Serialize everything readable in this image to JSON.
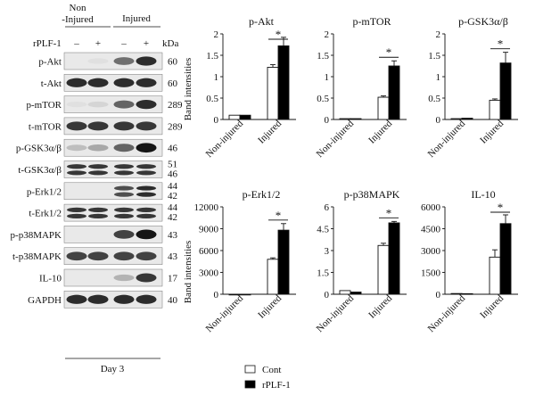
{
  "blot": {
    "group_labels": {
      "non_injured_line1": "Non",
      "non_injured_line2": "-Injured",
      "injured": "Injured"
    },
    "treatment_label": "rPLF-1",
    "signs": [
      "–",
      "+",
      "–",
      "+"
    ],
    "kda_label": "kDa",
    "day_label": "Day 3",
    "ylabel": "Band intensities",
    "rows": [
      {
        "name": "p-Akt",
        "mw": [
          "60"
        ],
        "bands": [
          0.0,
          0.05,
          0.55,
          0.85
        ]
      },
      {
        "name": "t-Akt",
        "mw": [
          "60"
        ],
        "bands": [
          0.85,
          0.85,
          0.85,
          0.85
        ]
      },
      {
        "name": "p-mTOR",
        "mw": [
          "289"
        ],
        "bands": [
          0.05,
          0.1,
          0.6,
          0.85
        ]
      },
      {
        "name": "t-mTOR",
        "mw": [
          "289"
        ],
        "bands": [
          0.8,
          0.8,
          0.8,
          0.8
        ]
      },
      {
        "name": "p-GSK3α/β",
        "mw": [
          "46"
        ],
        "bands": [
          0.2,
          0.3,
          0.6,
          0.95
        ]
      },
      {
        "name": "t-GSK3α/β",
        "mw": [
          "51",
          "46"
        ],
        "bands": [
          0.8,
          0.8,
          0.8,
          0.8
        ]
      },
      {
        "name": "p-Erk1/2",
        "mw": [
          "44",
          "42"
        ],
        "bands": [
          0.0,
          0.0,
          0.7,
          0.85
        ]
      },
      {
        "name": "t-Erk1/2",
        "mw": [
          "44",
          "42"
        ],
        "bands": [
          0.8,
          0.8,
          0.8,
          0.8
        ]
      },
      {
        "name": "p-p38MAPK",
        "mw": [
          "43"
        ],
        "bands": [
          0.0,
          0.0,
          0.75,
          0.95
        ]
      },
      {
        "name": "t-p38MAPK",
        "mw": [
          "43"
        ],
        "bands": [
          0.75,
          0.75,
          0.75,
          0.75
        ]
      },
      {
        "name": "IL-10",
        "mw": [
          "17"
        ],
        "bands": [
          0.0,
          0.0,
          0.25,
          0.8
        ]
      },
      {
        "name": "GAPDH",
        "mw": [
          "40"
        ],
        "bands": [
          0.85,
          0.85,
          0.85,
          0.85
        ]
      }
    ]
  },
  "legend": {
    "items": [
      {
        "label": "Cont",
        "color": "#ffffff"
      },
      {
        "label": "rPLF-1",
        "color": "#000000"
      }
    ]
  },
  "chart_data": [
    {
      "type": "bar",
      "title": "p-Akt",
      "categories": [
        "Non-injured",
        "Injured"
      ],
      "ylim": [
        0,
        2
      ],
      "yticks": [
        "0",
        "0.5",
        "1",
        "1.5",
        "2"
      ],
      "ylabel": "Band intensities",
      "series": [
        {
          "name": "Cont",
          "values": [
            0.1,
            1.22
          ],
          "errors": [
            0.0,
            0.06
          ]
        },
        {
          "name": "rPLF-1",
          "values": [
            0.1,
            1.72
          ],
          "errors": [
            0.0,
            0.2
          ]
        }
      ],
      "annotation": "*"
    },
    {
      "type": "bar",
      "title": "p-mTOR",
      "categories": [
        "Non-injured",
        "Injured"
      ],
      "ylim": [
        0,
        2
      ],
      "yticks": [
        "0",
        "0.5",
        "1",
        "1.5",
        "2"
      ],
      "ylabel": "",
      "series": [
        {
          "name": "Cont",
          "values": [
            0.02,
            0.52
          ],
          "errors": [
            0.0,
            0.03
          ]
        },
        {
          "name": "rPLF-1",
          "values": [
            0.02,
            1.25
          ],
          "errors": [
            0.0,
            0.12
          ]
        }
      ],
      "annotation": "*"
    },
    {
      "type": "bar",
      "title": "p-GSK3α/β",
      "categories": [
        "Non-injured",
        "Injured"
      ],
      "ylim": [
        0,
        2
      ],
      "yticks": [
        "0",
        "0.5",
        "1",
        "1.5",
        "2"
      ],
      "ylabel": "",
      "series": [
        {
          "name": "Cont",
          "values": [
            0.02,
            0.45
          ],
          "errors": [
            0.0,
            0.03
          ]
        },
        {
          "name": "rPLF-1",
          "values": [
            0.03,
            1.32
          ],
          "errors": [
            0.0,
            0.25
          ]
        }
      ],
      "annotation": "*"
    },
    {
      "type": "bar",
      "title": "p-Erk1/2",
      "categories": [
        "Non-injured",
        "Injured"
      ],
      "ylim": [
        0,
        12000
      ],
      "yticks": [
        "0",
        "3000",
        "6000",
        "9000",
        "12000"
      ],
      "ylabel": "Band intensities",
      "series": [
        {
          "name": "Cont",
          "values": [
            0,
            4800
          ],
          "errors": [
            0,
            200
          ]
        },
        {
          "name": "rPLF-1",
          "values": [
            0,
            8800
          ],
          "errors": [
            0,
            900
          ]
        }
      ],
      "annotation": "*"
    },
    {
      "type": "bar",
      "title": "p-p38MAPK",
      "categories": [
        "Non-injured",
        "Injured"
      ],
      "ylim": [
        0,
        6
      ],
      "yticks": [
        "0",
        "1.5",
        "3",
        "4.5",
        "6"
      ],
      "ylabel": "",
      "series": [
        {
          "name": "Cont",
          "values": [
            0.25,
            3.35
          ],
          "errors": [
            0.0,
            0.15
          ]
        },
        {
          "name": "rPLF-1",
          "values": [
            0.15,
            4.9
          ],
          "errors": [
            0.0,
            0.1
          ]
        }
      ],
      "annotation": "*"
    },
    {
      "type": "bar",
      "title": "IL-10",
      "categories": [
        "Non-injured",
        "Injured"
      ],
      "ylim": [
        0,
        6000
      ],
      "yticks": [
        "0",
        "1500",
        "3000",
        "4500",
        "6000"
      ],
      "ylabel": "",
      "series": [
        {
          "name": "Cont",
          "values": [
            50,
            2550
          ],
          "errors": [
            0,
            500
          ]
        },
        {
          "name": "rPLF-1",
          "values": [
            40,
            4850
          ],
          "errors": [
            0,
            600
          ]
        }
      ],
      "annotation": "*"
    }
  ]
}
